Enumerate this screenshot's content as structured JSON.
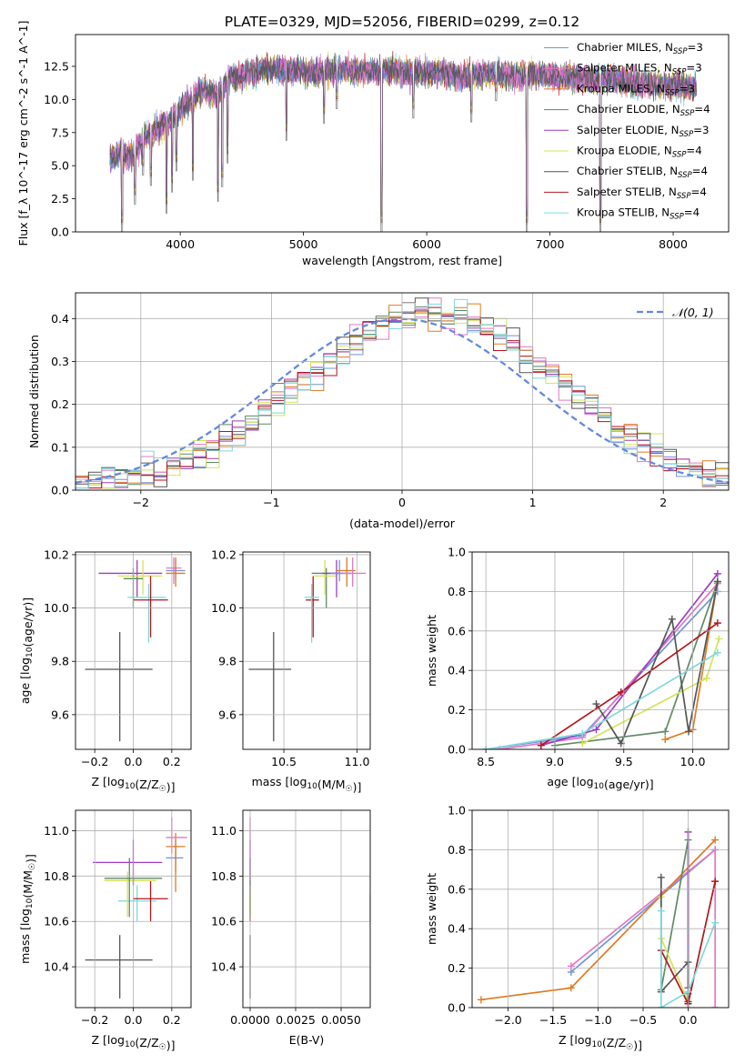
{
  "figure": {
    "title": "PLATE=0329, MJD=52056, FIBERID=0299, z=0.12"
  },
  "colors": {
    "Chabrier MILES": "#6f95dd",
    "Salpeter MILES": "#e377c2",
    "Kroupa MILES": "#e07a1f",
    "Chabrier ELODIE": "#5f8a63",
    "Salpeter ELODIE": "#9a3ec0",
    "Kroupa ELODIE": "#d4e35a",
    "Chabrier STELIB": "#555555",
    "Salpeter STELIB": "#b3151c",
    "Kroupa STELIB": "#7fd9db"
  },
  "chart_data": [
    {
      "panel": "spectrum",
      "type": "line",
      "xlabel": "wavelength [Angstrom, rest frame]",
      "ylabel": "Flux [f_λ 10^-17 erg cm^-2 s^-1 A^-1]",
      "xlim": [
        3150,
        8450
      ],
      "ylim": [
        0,
        14.9
      ],
      "xticks": [
        4000,
        5000,
        6000,
        7000,
        8000
      ],
      "yticks": [
        0.0,
        2.5,
        5.0,
        7.5,
        10.0,
        12.5
      ],
      "grid": false,
      "legend_position": "top-right",
      "envelope": [
        [
          3430,
          6.0
        ],
        [
          3500,
          6.6
        ],
        [
          3600,
          6.3
        ],
        [
          3700,
          7.6
        ],
        [
          3800,
          8.3
        ],
        [
          3900,
          8.9
        ],
        [
          4000,
          9.8
        ],
        [
          4100,
          10.7
        ],
        [
          4200,
          11.3
        ],
        [
          4300,
          11.0
        ],
        [
          4400,
          12.2
        ],
        [
          4500,
          12.4
        ],
        [
          4700,
          12.9
        ],
        [
          4900,
          12.8
        ],
        [
          5100,
          12.6
        ],
        [
          5300,
          12.9
        ],
        [
          5500,
          12.7
        ],
        [
          5700,
          12.8
        ],
        [
          5900,
          12.6
        ],
        [
          6100,
          12.7
        ],
        [
          6300,
          12.3
        ],
        [
          6500,
          12.6
        ],
        [
          6700,
          12.4
        ],
        [
          6900,
          12.5
        ],
        [
          7100,
          12.3
        ],
        [
          7300,
          12.1
        ],
        [
          7500,
          12.2
        ],
        [
          7700,
          11.8
        ],
        [
          7900,
          11.7
        ],
        [
          8100,
          11.6
        ],
        [
          8190,
          11.5
        ]
      ],
      "absorption_lines": [
        [
          3527,
          0.0
        ],
        [
          3633,
          2.1
        ],
        [
          3699,
          4.3
        ],
        [
          3762,
          3.5
        ],
        [
          3889,
          1.4
        ],
        [
          3934,
          3.0
        ],
        [
          3969,
          4.6
        ],
        [
          4102,
          3.9
        ],
        [
          4306,
          2.3
        ],
        [
          4340,
          3.4
        ],
        [
          4384,
          5.2
        ],
        [
          4861,
          6.9
        ],
        [
          5167,
          8.2
        ],
        [
          5270,
          9.3
        ],
        [
          5634,
          0.0
        ],
        [
          5892,
          8.6
        ],
        [
          6363,
          8.3
        ],
        [
          6563,
          9.9
        ],
        [
          6717,
          11.4
        ],
        [
          6812,
          0.0
        ],
        [
          7409,
          0.0
        ]
      ],
      "series": [
        {
          "name": "Chabrier MILES, N_SSP=3",
          "label_main": "Chabrier MILES, N",
          "label_sub": "SSP",
          "label_tail": "=3"
        },
        {
          "name": "Salpeter MILES, N_SSP=3",
          "label_main": "Salpeter MILES, N",
          "label_sub": "SSP",
          "label_tail": "=3"
        },
        {
          "name": "Kroupa MILES, N_SSP=3",
          "label_main": "Kroupa MILES, N",
          "label_sub": "SSP",
          "label_tail": "=3"
        },
        {
          "name": "Chabrier ELODIE, N_SSP=4",
          "label_main": "Chabrier ELODIE, N",
          "label_sub": "SSP",
          "label_tail": "=4"
        },
        {
          "name": "Salpeter ELODIE, N_SSP=3",
          "label_main": "Salpeter ELODIE, N",
          "label_sub": "SSP",
          "label_tail": "=3"
        },
        {
          "name": "Kroupa ELODIE, N_SSP=4",
          "label_main": "Kroupa ELODIE, N",
          "label_sub": "SSP",
          "label_tail": "=4"
        },
        {
          "name": "Chabrier STELIB, N_SSP=4",
          "label_main": "Chabrier STELIB, N",
          "label_sub": "SSP",
          "label_tail": "=4"
        },
        {
          "name": "Salpeter STELIB, N_SSP=4",
          "label_main": "Salpeter STELIB, N",
          "label_sub": "SSP",
          "label_tail": "=4"
        },
        {
          "name": "Kroupa STELIB, N_SSP=4",
          "label_main": "Kroupa STELIB, N",
          "label_sub": "SSP",
          "label_tail": "=4"
        }
      ]
    },
    {
      "panel": "residual_histogram",
      "type": "line",
      "xlabel": "(data-model)/error",
      "ylabel": "Normed distribution",
      "xlim": [
        -2.5,
        2.5
      ],
      "ylim": [
        0,
        0.46
      ],
      "xticks": [
        -2,
        -1,
        0,
        1,
        2
      ],
      "yticks": [
        0.0,
        0.1,
        0.2,
        0.3,
        0.4
      ],
      "grid": true,
      "legend_position": "top-right",
      "reference": {
        "name": "N(0,1)",
        "label": "𝒩(0, 1)",
        "style": "dashed",
        "color": "#6688dd"
      },
      "bin_width": 0.1,
      "histogram_series": "one stepped histogram per model in the spectrum legend, all close to the N(0,1) curve with peak near 0.41 shifted slightly toward positive values"
    },
    {
      "panel": "age_vs_Z",
      "type": "scatter",
      "xlabel": "Z [log10(Z/Z☉)]",
      "ylabel": "age  [log10(age/yr)]",
      "xlim": [
        -0.3,
        0.3
      ],
      "ylim": [
        9.47,
        10.21
      ],
      "xticks": [
        -0.2,
        0.0,
        0.2
      ],
      "yticks": [
        9.6,
        9.8,
        10.0,
        10.2
      ],
      "grid": true,
      "points": [
        {
          "series": "Chabrier STELIB",
          "x": -0.07,
          "xlo": -0.25,
          "xhi": 0.1,
          "y": 9.77,
          "ylo": 9.5,
          "yhi": 9.91
        },
        {
          "series": "Salpeter ELODIE",
          "x": 0.02,
          "xlo": -0.18,
          "xhi": 0.15,
          "y": 10.13,
          "ylo": 10.04,
          "yhi": 10.18
        },
        {
          "series": "Kroupa ELODIE",
          "x": 0.05,
          "xlo": -0.08,
          "xhi": 0.15,
          "y": 10.12,
          "ylo": 10.05,
          "yhi": 10.18
        },
        {
          "series": "Chabrier ELODIE",
          "x": 0.0,
          "xlo": -0.05,
          "xhi": 0.05,
          "y": 10.11,
          "ylo": 10.0,
          "yhi": 10.15
        },
        {
          "series": "Kroupa STELIB",
          "x": 0.08,
          "xlo": -0.03,
          "xhi": 0.17,
          "y": 10.04,
          "ylo": 9.87,
          "yhi": 10.09
        },
        {
          "series": "Salpeter STELIB",
          "x": 0.09,
          "xlo": 0.0,
          "xhi": 0.18,
          "y": 10.03,
          "ylo": 9.89,
          "yhi": 10.12
        },
        {
          "series": "Chabrier MILES",
          "x": 0.22,
          "xlo": 0.17,
          "xhi": 0.27,
          "y": 10.14,
          "ylo": 10.11,
          "yhi": 10.18
        },
        {
          "series": "Salpeter MILES",
          "x": 0.21,
          "xlo": 0.17,
          "xhi": 0.25,
          "y": 10.15,
          "ylo": 10.09,
          "yhi": 10.19
        },
        {
          "series": "Kroupa MILES",
          "x": 0.22,
          "xlo": 0.17,
          "xhi": 0.27,
          "y": 10.13,
          "ylo": 10.08,
          "yhi": 10.19
        }
      ]
    },
    {
      "panel": "age_vs_mass",
      "type": "scatter",
      "xlabel": "mass [log10(M/M☉)]",
      "ylabel": "",
      "xlim": [
        10.22,
        11.09
      ],
      "ylim": [
        9.47,
        10.21
      ],
      "xticks": [
        10.5,
        11.0
      ],
      "yticks": [
        9.6,
        9.8,
        10.0,
        10.2
      ],
      "grid": true,
      "points": [
        {
          "series": "Chabrier STELIB",
          "x": 10.43,
          "xlo": 10.26,
          "xhi": 10.55,
          "y": 9.77,
          "ylo": 9.5,
          "yhi": 9.91
        },
        {
          "series": "Salpeter STELIB",
          "x": 10.7,
          "xlo": 10.65,
          "xhi": 10.74,
          "y": 10.03,
          "ylo": 9.89,
          "yhi": 10.12
        },
        {
          "series": "Kroupa STELIB",
          "x": 10.69,
          "xlo": 10.64,
          "xhi": 10.74,
          "y": 10.04,
          "ylo": 9.87,
          "yhi": 10.09
        },
        {
          "series": "Chabrier ELODIE",
          "x": 10.79,
          "xlo": 10.69,
          "xhi": 10.88,
          "y": 10.13,
          "ylo": 10.0,
          "yhi": 10.15
        },
        {
          "series": "Kroupa ELODIE",
          "x": 10.78,
          "xlo": 10.7,
          "xhi": 10.86,
          "y": 10.12,
          "ylo": 10.05,
          "yhi": 10.18
        },
        {
          "series": "Salpeter ELODIE",
          "x": 10.86,
          "xlo": 10.76,
          "xhi": 10.96,
          "y": 10.13,
          "ylo": 10.04,
          "yhi": 10.18
        },
        {
          "series": "Chabrier MILES",
          "x": 10.88,
          "xlo": 10.82,
          "xhi": 10.96,
          "y": 10.13,
          "ylo": 10.1,
          "yhi": 10.18
        },
        {
          "series": "Kroupa MILES",
          "x": 10.93,
          "xlo": 10.86,
          "xhi": 10.99,
          "y": 10.14,
          "ylo": 10.08,
          "yhi": 10.19
        },
        {
          "series": "Salpeter MILES",
          "x": 10.97,
          "xlo": 10.9,
          "xhi": 11.06,
          "y": 10.13,
          "ylo": 10.08,
          "yhi": 10.19
        }
      ]
    },
    {
      "panel": "mass_weight_vs_age",
      "type": "line",
      "xlabel": "age  [log10(age/yr)]",
      "ylabel": "mass weight",
      "xlim": [
        8.4,
        10.26
      ],
      "ylim": [
        0,
        1.0
      ],
      "xticks": [
        8.5,
        9.0,
        9.5,
        10.0
      ],
      "yticks": [
        0.0,
        0.2,
        0.4,
        0.6,
        0.8,
        1.0
      ],
      "grid": true,
      "series": [
        {
          "name": "Chabrier MILES",
          "x": [
            8.5,
            9.2,
            10.18
          ],
          "y": [
            0.0,
            0.07,
            0.8
          ]
        },
        {
          "name": "Salpeter MILES",
          "x": [
            8.6,
            9.2,
            10.18
          ],
          "y": [
            0.0,
            0.06,
            0.84
          ]
        },
        {
          "name": "Kroupa MILES",
          "x": [
            9.8,
            10.0,
            10.18
          ],
          "y": [
            0.05,
            0.1,
            0.85
          ]
        },
        {
          "name": "Chabrier ELODIE",
          "x": [
            9.0,
            9.8,
            10.18
          ],
          "y": [
            0.02,
            0.09,
            0.85
          ]
        },
        {
          "name": "Salpeter ELODIE",
          "x": [
            8.9,
            9.3,
            10.18
          ],
          "y": [
            0.02,
            0.1,
            0.89
          ]
        },
        {
          "name": "Kroupa ELODIE",
          "x": [
            9.2,
            10.1,
            10.19
          ],
          "y": [
            0.03,
            0.36,
            0.56
          ]
        },
        {
          "name": "Chabrier STELIB",
          "x": [
            9.3,
            9.48,
            9.85,
            9.97,
            10.18
          ],
          "y": [
            0.23,
            0.03,
            0.66,
            0.09,
            0.85
          ]
        },
        {
          "name": "Salpeter STELIB",
          "x": [
            8.9,
            9.48,
            10.18
          ],
          "y": [
            0.02,
            0.29,
            0.64
          ]
        },
        {
          "name": "Kroupa STELIB",
          "x": [
            8.5,
            9.2,
            10.18
          ],
          "y": [
            0.0,
            0.08,
            0.49
          ]
        }
      ]
    },
    {
      "panel": "mass_vs_Z",
      "type": "scatter",
      "xlabel": "Z [log10(Z/Z☉)]",
      "ylabel": "mass [log10(M/M☉)]",
      "xlim": [
        -0.3,
        0.3
      ],
      "ylim": [
        10.22,
        11.09
      ],
      "xticks": [
        -0.2,
        0.0,
        0.2
      ],
      "yticks": [
        10.4,
        10.6,
        10.8,
        11.0
      ],
      "grid": true,
      "points": [
        {
          "series": "Chabrier STELIB",
          "x": -0.07,
          "xlo": -0.25,
          "xhi": 0.1,
          "y": 10.43,
          "ylo": 10.26,
          "yhi": 10.54
        },
        {
          "series": "Kroupa STELIB",
          "x": 0.02,
          "xlo": -0.08,
          "xhi": 0.12,
          "y": 10.69,
          "ylo": 10.6,
          "yhi": 10.76
        },
        {
          "series": "Salpeter STELIB",
          "x": 0.09,
          "xlo": 0.0,
          "xhi": 0.18,
          "y": 10.7,
          "ylo": 10.6,
          "yhi": 10.78
        },
        {
          "series": "Kroupa ELODIE",
          "x": -0.03,
          "xlo": -0.15,
          "xhi": 0.12,
          "y": 10.78,
          "ylo": 10.62,
          "yhi": 10.82
        },
        {
          "series": "Chabrier ELODIE",
          "x": -0.02,
          "xlo": -0.15,
          "xhi": 0.15,
          "y": 10.79,
          "ylo": 10.62,
          "yhi": 10.88
        },
        {
          "series": "Salpeter ELODIE",
          "x": 0.0,
          "xlo": -0.21,
          "xhi": 0.15,
          "y": 10.86,
          "ylo": 10.76,
          "yhi": 10.96
        },
        {
          "series": "Chabrier MILES",
          "x": 0.22,
          "xlo": 0.17,
          "xhi": 0.26,
          "y": 10.88,
          "ylo": 10.82,
          "yhi": 10.96
        },
        {
          "series": "Kroupa MILES",
          "x": 0.22,
          "xlo": 0.17,
          "xhi": 0.27,
          "y": 10.93,
          "ylo": 10.73,
          "yhi": 10.99
        },
        {
          "series": "Salpeter MILES",
          "x": 0.2,
          "xlo": 0.17,
          "xhi": 0.28,
          "y": 10.97,
          "ylo": 10.9,
          "yhi": 11.06
        }
      ]
    },
    {
      "panel": "mass_vs_EBV",
      "type": "scatter",
      "xlabel": "E(B-V)",
      "ylabel": "",
      "xlim": [
        -0.0004,
        0.0066
      ],
      "ylim": [
        10.22,
        11.09
      ],
      "xticks": [
        0.0,
        0.0025,
        0.005
      ],
      "xtick_labels": [
        "0.0000",
        "0.0025",
        "0.0050"
      ],
      "yticks": [
        10.4,
        10.6,
        10.8,
        11.0
      ],
      "grid": true,
      "points": [
        {
          "series": "Chabrier STELIB",
          "x": 0.0,
          "y": 10.43,
          "ylo": 10.26,
          "yhi": 10.54
        },
        {
          "series": "Salpeter STELIB",
          "x": 0.0,
          "y": 10.7,
          "ylo": 10.6,
          "yhi": 10.78
        },
        {
          "series": "Kroupa ELODIE",
          "x": 0.0,
          "y": 10.78,
          "ylo": 10.62,
          "yhi": 10.82
        },
        {
          "series": "Chabrier ELODIE",
          "x": 0.0,
          "y": 10.79,
          "ylo": 10.62,
          "yhi": 10.88
        },
        {
          "series": "Salpeter ELODIE",
          "x": 0.0,
          "y": 10.86,
          "ylo": 10.76,
          "yhi": 10.96
        },
        {
          "series": "Salpeter MILES",
          "x": 0.0,
          "y": 10.97,
          "ylo": 10.9,
          "yhi": 11.06
        },
        {
          "series": "Kroupa STELIB",
          "x": 0.0066,
          "y": 10.69,
          "ylo": 10.6,
          "yhi": 10.72
        }
      ]
    },
    {
      "panel": "mass_weight_vs_Z",
      "type": "line",
      "xlabel": "Z [log10(Z/Z☉)]",
      "ylabel": "mass weight",
      "xlim": [
        -2.4,
        0.45
      ],
      "ylim": [
        0,
        1.0
      ],
      "xticks": [
        -2.0,
        -1.5,
        -1.0,
        -0.5,
        0.0
      ],
      "yticks": [
        0.0,
        0.2,
        0.4,
        0.6,
        0.8,
        1.0
      ],
      "grid": true,
      "series": [
        {
          "name": "Chabrier MILES",
          "x": [
            -1.3,
            0.3
          ],
          "y": [
            0.18,
            0.8
          ]
        },
        {
          "name": "Salpeter MILES",
          "x": [
            -1.3,
            0.3,
            0.3
          ],
          "y": [
            0.21,
            0.8,
            0.0
          ]
        },
        {
          "name": "Kroupa MILES",
          "x": [
            -2.3,
            -1.3,
            0.3
          ],
          "y": [
            0.04,
            0.1,
            0.85
          ]
        },
        {
          "name": "Chabrier ELODIE",
          "x": [
            -0.3,
            0.0,
            0.0
          ],
          "y": [
            0.09,
            0.85,
            0.07
          ]
        },
        {
          "name": "Salpeter ELODIE",
          "x": [
            0.0,
            0.0,
            0.0
          ],
          "y": [
            0.02,
            0.1,
            0.89
          ]
        },
        {
          "name": "Kroupa ELODIE",
          "x": [
            -0.3,
            -0.3,
            0.0
          ],
          "y": [
            0.56,
            0.35,
            0.03
          ]
        },
        {
          "name": "Chabrier STELIB",
          "x": [
            -0.3,
            -0.3,
            0.0,
            0.0
          ],
          "y": [
            0.66,
            0.08,
            0.23,
            0.03
          ]
        },
        {
          "name": "Salpeter STELIB",
          "x": [
            -0.3,
            0.0,
            0.3
          ],
          "y": [
            0.29,
            0.02,
            0.64
          ]
        },
        {
          "name": "Kroupa STELIB",
          "x": [
            -0.3,
            -0.3,
            0.0,
            0.3
          ],
          "y": [
            0.49,
            0.0,
            0.08,
            0.43
          ]
        }
      ]
    }
  ]
}
